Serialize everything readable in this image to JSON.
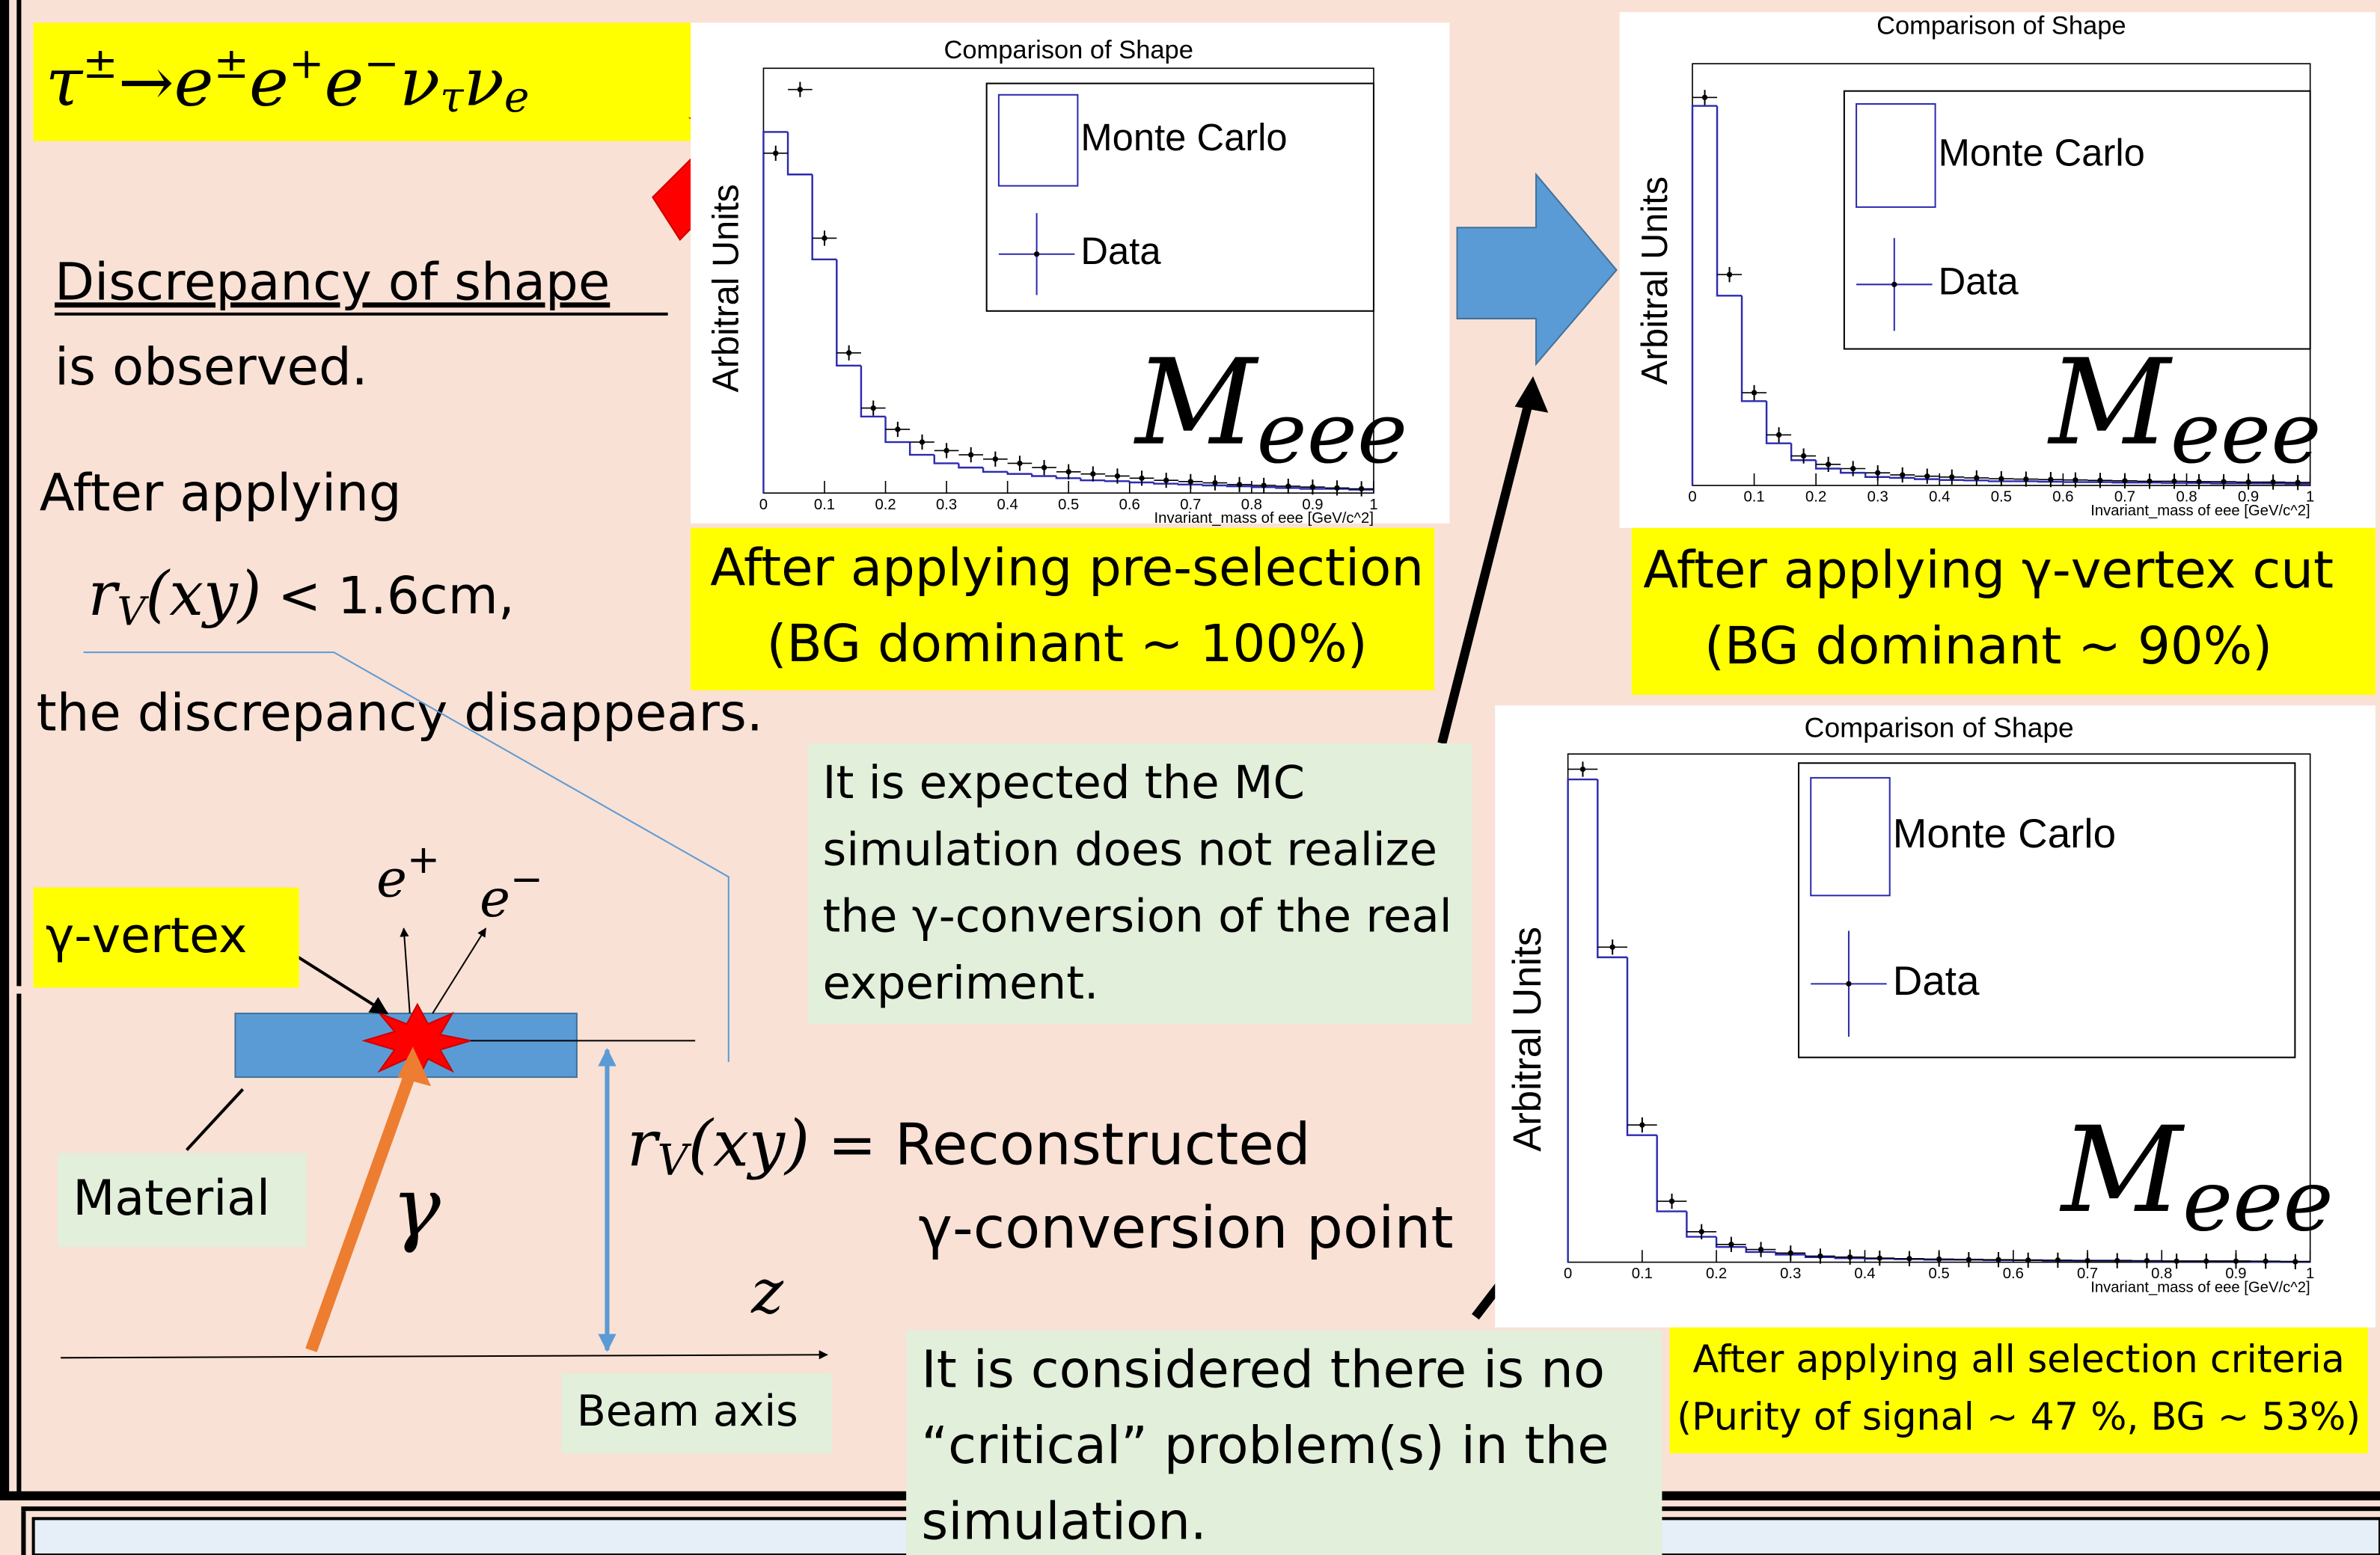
{
  "formula": [
    "τ",
    "±",
    "→",
    "e",
    "±",
    "e",
    "+",
    "e",
    "−",
    "ν",
    "τ",
    "ν",
    "e"
  ],
  "left_text": {
    "discrepancy": "Discrepancy of shape",
    "observed": "is observed.",
    "after": "After applying",
    "cut": [
      "r",
      "V",
      "(xy)",
      " < 1.6cm,"
    ],
    "disappears": "the discrepancy disappears."
  },
  "diagram": {
    "e_plus": [
      "e",
      "+"
    ],
    "e_minus": [
      "e",
      "−"
    ],
    "vertex_label": "γ-vertex",
    "material": "Material",
    "gamma": "γ",
    "z": "z",
    "beam_axis": "Beam axis",
    "definition": [
      "r",
      "V",
      "(xy)",
      " = Reconstructed"
    ],
    "definition_2": "γ-conversion point"
  },
  "notes": [
    [
      "It is expected the MC",
      "simulation does not realize",
      "the γ-conversion of the real",
      "experiment."
    ],
    [
      "It is considered there is no",
      "“critical” problem(s) in the",
      "simulation."
    ]
  ],
  "captions": [
    [
      "After applying pre-selection",
      "(BG dominant ~ 100%)"
    ],
    [
      "After applying γ-vertex cut",
      "(BG dominant ~ 90%)"
    ],
    [
      "After applying all selection criteria",
      "(Purity of signal ~ 47 %, BG ~ 53%)"
    ]
  ],
  "chart_data": [
    {
      "type": "histogram",
      "title": "Comparison of Shape",
      "x_label": "Invariant_mass of eee [GeV/c^2]",
      "y_label": "Arbitral Units",
      "annotation": [
        "M",
        "eee"
      ],
      "bins": [
        0,
        0.04,
        0.08,
        0.12,
        0.16,
        0.2,
        0.24,
        0.28,
        0.32,
        0.36,
        0.4,
        0.44,
        0.48,
        0.52,
        0.56,
        0.6,
        0.64,
        0.68,
        0.72,
        0.76,
        0.8,
        0.84,
        0.88,
        0.92,
        0.96,
        1
      ],
      "series": [
        {
          "name": "Monte Carlo",
          "color": "#2b2bb0",
          "values": [
            0.85,
            0.75,
            0.55,
            0.3,
            0.18,
            0.12,
            0.09,
            0.07,
            0.06,
            0.05,
            0.045,
            0.04,
            0.035,
            0.03,
            0.028,
            0.025,
            0.022,
            0.02,
            0.018,
            0.016,
            0.014,
            0.012,
            0.01,
            0.01,
            0.008
          ]
        },
        {
          "name": "Data",
          "color": "#000000",
          "values": [
            0.8,
            0.95,
            0.6,
            0.33,
            0.2,
            0.15,
            0.12,
            0.1,
            0.09,
            0.08,
            0.07,
            0.06,
            0.05,
            0.045,
            0.04,
            0.035,
            0.03,
            0.027,
            0.024,
            0.02,
            0.018,
            0.016,
            0.014,
            0.012,
            0.01
          ]
        }
      ],
      "xlim": [
        0,
        1
      ],
      "ylim": [
        0,
        1
      ],
      "xticks": [
        0,
        0.1,
        0.2,
        0.3,
        0.4,
        0.5,
        0.6,
        0.7,
        0.8,
        0.9,
        1
      ]
    },
    {
      "type": "histogram",
      "title": "Comparison of Shape",
      "x_label": "Invariant_mass of eee [GeV/c^2]",
      "y_label": "Arbitral Units",
      "annotation": [
        "M",
        "eee"
      ],
      "bins": [
        0,
        0.04,
        0.08,
        0.12,
        0.16,
        0.2,
        0.24,
        0.28,
        0.32,
        0.36,
        0.4,
        0.44,
        0.48,
        0.52,
        0.56,
        0.6,
        0.64,
        0.68,
        0.72,
        0.76,
        0.8,
        0.84,
        0.88,
        0.92,
        0.96,
        1
      ],
      "series": [
        {
          "name": "Monte Carlo",
          "color": "#2b2bb0",
          "values": [
            0.9,
            0.45,
            0.2,
            0.1,
            0.06,
            0.04,
            0.03,
            0.02,
            0.018,
            0.015,
            0.013,
            0.012,
            0.01,
            0.01,
            0.009,
            0.008,
            0.008,
            0.007,
            0.007,
            0.006,
            0.006,
            0.005,
            0.005,
            0.005,
            0.004
          ]
        },
        {
          "name": "Data",
          "color": "#000000",
          "values": [
            0.92,
            0.5,
            0.22,
            0.12,
            0.07,
            0.05,
            0.04,
            0.03,
            0.025,
            0.022,
            0.02,
            0.018,
            0.016,
            0.015,
            0.014,
            0.013,
            0.012,
            0.011,
            0.01,
            0.01,
            0.009,
            0.009,
            0.008,
            0.008,
            0.007
          ]
        }
      ],
      "xlim": [
        0,
        1
      ],
      "ylim": [
        0,
        1
      ],
      "xticks": [
        0,
        0.1,
        0.2,
        0.3,
        0.4,
        0.5,
        0.6,
        0.7,
        0.8,
        0.9,
        1
      ]
    },
    {
      "type": "histogram",
      "title": "Comparison of Shape",
      "x_label": "Invariant_mass of eee [GeV/c^2]",
      "y_label": "Arbitral Units",
      "annotation": [
        "M",
        "eee"
      ],
      "bins": [
        0,
        0.04,
        0.08,
        0.12,
        0.16,
        0.2,
        0.24,
        0.28,
        0.32,
        0.36,
        0.4,
        0.44,
        0.48,
        0.52,
        0.56,
        0.6,
        0.64,
        0.68,
        0.72,
        0.76,
        0.8,
        0.84,
        0.88,
        0.92,
        0.96,
        1
      ],
      "series": [
        {
          "name": "Monte Carlo",
          "color": "#2b2bb0",
          "values": [
            0.95,
            0.6,
            0.25,
            0.1,
            0.05,
            0.03,
            0.02,
            0.015,
            0.01,
            0.008,
            0.007,
            0.006,
            0.005,
            0.005,
            0.004,
            0.004,
            0.003,
            0.003,
            0.003,
            0.002,
            0.002,
            0.002,
            0.002,
            0.001,
            0.001
          ]
        },
        {
          "name": "Data",
          "color": "#000000",
          "values": [
            0.97,
            0.62,
            0.27,
            0.12,
            0.06,
            0.035,
            0.025,
            0.018,
            0.012,
            0.01,
            0.008,
            0.007,
            0.006,
            0.005,
            0.005,
            0.004,
            0.004,
            0.003,
            0.003,
            0.003,
            0.002,
            0.002,
            0.002,
            0.002,
            0.001
          ]
        }
      ],
      "xlim": [
        0,
        1
      ],
      "ylim": [
        0,
        1
      ],
      "xticks": [
        0,
        0.1,
        0.2,
        0.3,
        0.4,
        0.5,
        0.6,
        0.7,
        0.8,
        0.9,
        1
      ]
    }
  ]
}
